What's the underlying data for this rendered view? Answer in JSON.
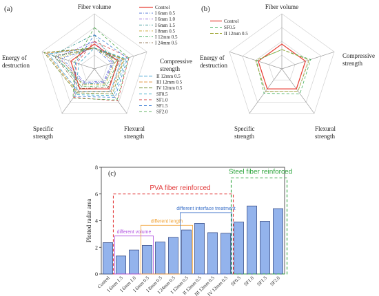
{
  "chart_data": [
    {
      "panel": "(a)",
      "type": "radar",
      "axes": [
        "Fiber volume",
        "Compressive strength",
        "Flexural strength",
        "Specific strength",
        "Energy of destruction"
      ],
      "axis_text": [
        [
          "Fiber volume"
        ],
        [
          "Compressive",
          "strength"
        ],
        [
          "Flexural",
          "strength"
        ],
        [
          "Specific",
          "strength"
        ],
        [
          "Energy of",
          "destruction"
        ]
      ],
      "legend_top": [
        "Control",
        "I 6mm 0.5",
        "I 6mm 1.0",
        "I 6mm 1.5",
        "I 8mm 0.5",
        "I 12mm 0.5",
        "I 24mm 0.5"
      ],
      "legend_bottom": [
        "II 12mm 0.5",
        "III 12mm 0.5",
        "IV 12mm 0.5",
        "SF0.5",
        "SF1.0",
        "SF1.5",
        "SF2.0"
      ],
      "series": [
        {
          "name": "Control",
          "color": "#e8453c",
          "dash": "",
          "values": [
            0.45,
            0.45,
            0.45,
            0.45,
            0.45
          ]
        },
        {
          "name": "I 6mm 0.5",
          "color": "#4a6fd6",
          "dash": "4,2,1,2",
          "values": [
            0.38,
            0.33,
            0.28,
            0.3,
            0.62
          ]
        },
        {
          "name": "I 6mm 1.0",
          "color": "#8a5ad6",
          "dash": "4,2,1,2",
          "values": [
            0.5,
            0.35,
            0.3,
            0.32,
            0.7
          ]
        },
        {
          "name": "I 6mm 1.5",
          "color": "#2f8f8f",
          "dash": "4,2,1,2",
          "values": [
            0.62,
            0.37,
            0.32,
            0.34,
            0.8
          ]
        },
        {
          "name": "I 8mm 0.5",
          "color": "#c9a227",
          "dash": "4,2,1,2",
          "values": [
            0.38,
            0.4,
            0.34,
            0.36,
            0.66
          ]
        },
        {
          "name": "I 12mm 0.5",
          "color": "#3fae5a",
          "dash": "4,2,1,2",
          "values": [
            0.38,
            0.45,
            0.38,
            0.4,
            0.72
          ]
        },
        {
          "name": "I 24mm 0.5",
          "color": "#7d5c3a",
          "dash": "4,2,1,2",
          "values": [
            0.38,
            0.48,
            0.42,
            0.44,
            0.76
          ]
        },
        {
          "name": "II 12mm 0.5",
          "color": "#3e9fd2",
          "dash": "5,2",
          "values": [
            0.38,
            0.52,
            0.5,
            0.5,
            0.88
          ]
        },
        {
          "name": "III 12mm 0.5",
          "color": "#e08a2c",
          "dash": "5,2",
          "values": [
            0.38,
            0.55,
            0.52,
            0.52,
            0.92
          ]
        },
        {
          "name": "IV 12mm 0.5",
          "color": "#6d8e2f",
          "dash": "5,2",
          "values": [
            0.38,
            0.57,
            0.56,
            0.54,
            0.96
          ]
        },
        {
          "name": "SF0.5",
          "color": "#2aa3c2",
          "dash": "4,3",
          "values": [
            0.38,
            0.6,
            0.6,
            0.58,
            0.3
          ]
        },
        {
          "name": "SF1.0",
          "color": "#d64545",
          "dash": "4,3",
          "values": [
            0.5,
            0.66,
            0.72,
            0.64,
            0.34
          ]
        },
        {
          "name": "SF1.5",
          "color": "#3b7bd4",
          "dash": "4,3",
          "values": [
            0.62,
            0.63,
            0.64,
            0.62,
            0.36
          ]
        },
        {
          "name": "SF2.0",
          "color": "#4aa84a",
          "dash": "4,3",
          "values": [
            0.75,
            0.65,
            0.7,
            0.66,
            0.38
          ]
        }
      ]
    },
    {
      "panel": "(b)",
      "type": "radar",
      "axes": [
        "Fiber volume",
        "Compressive strength",
        "Flexural strength",
        "Specific strength",
        "Energy of destruction"
      ],
      "axis_text": [
        [
          "Fiber volume"
        ],
        [
          "Compressive",
          "strength"
        ],
        [
          "Flexural",
          "strength"
        ],
        [
          "Specific",
          "strength"
        ],
        [
          "Energy of",
          "destruction"
        ]
      ],
      "series": [
        {
          "name": "Control",
          "color": "#e8453c",
          "dash": "",
          "values": [
            0.45,
            0.45,
            0.45,
            0.45,
            0.45
          ]
        },
        {
          "name": "SF0.5",
          "color": "#3fae5a",
          "dash": "4,3",
          "values": [
            0.35,
            0.55,
            0.56,
            0.55,
            0.48
          ]
        },
        {
          "name": "II 12mm 0.5",
          "color": "#9aa22a",
          "dash": "5,2",
          "values": [
            0.35,
            0.52,
            0.5,
            0.51,
            0.5
          ]
        }
      ]
    },
    {
      "panel": "(c)",
      "type": "bar",
      "ylabel": "Plotted radar area",
      "ylim": [
        0,
        8
      ],
      "yticks": [
        0,
        2,
        4,
        6,
        8
      ],
      "categories": [
        "Control",
        "I 6mm 1.5",
        "I 6mm 1.0",
        "I 6mm 0.5",
        "I 8mm 0.5",
        "I 24mm 0.5",
        "I 12mm 0.5",
        "II 12mm 0.5",
        "III 12mm 0.5",
        "IV 12mm 0.5",
        "SF0.5",
        "SF1.0",
        "SF1.5",
        "SF2.0"
      ],
      "values": [
        2.35,
        1.35,
        1.8,
        2.15,
        2.4,
        2.75,
        3.3,
        3.8,
        3.1,
        3.05,
        3.9,
        5.1,
        3.95,
        4.9
      ],
      "bar_color": "#93b3ec",
      "group_labels": {
        "pva": "PVA fiber reinforced",
        "steel": "Steel fiber reinforced",
        "volume": "different volume",
        "length": "different length",
        "interface": "different interface treatment"
      }
    }
  ]
}
